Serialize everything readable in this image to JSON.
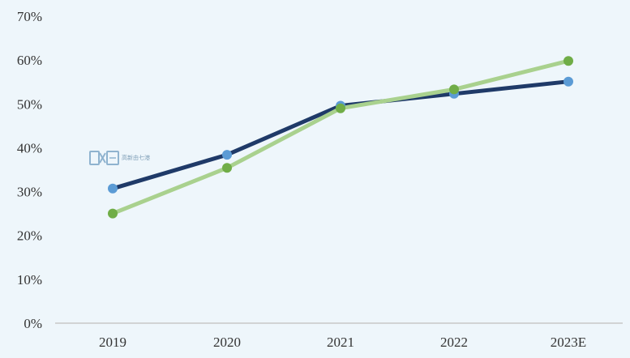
{
  "chart_data": {
    "type": "line",
    "categories": [
      "2019",
      "2020",
      "2021",
      "2022",
      "2023E"
    ],
    "yticks": [
      "0%",
      "10%",
      "20%",
      "30%",
      "40%",
      "50%",
      "60%",
      "70%"
    ],
    "ylim": [
      0,
      70
    ],
    "grid": false,
    "legend": "none",
    "series": [
      {
        "values": [
          30.7,
          38.4,
          49.6,
          52.3,
          55.1
        ],
        "line_color": "#1f3a68",
        "marker_color": "#5b9bd5"
      },
      {
        "values": [
          25.0,
          35.4,
          49.0,
          53.3,
          59.8
        ],
        "line_color": "#a9d18e",
        "marker_color": "#70ad47"
      }
    ]
  },
  "watermark": {
    "label": "高新由七港"
  }
}
